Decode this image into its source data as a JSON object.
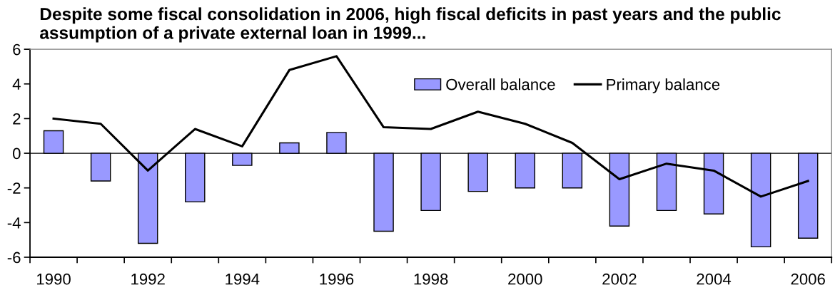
{
  "chart_data": {
    "type": "bar",
    "title": "Despite some fiscal consolidation in 2006, high fiscal deficits in past years and the public assumption of a private external loan in 1999...",
    "categories": [
      "1990",
      null,
      "1992",
      null,
      "1994",
      null,
      "1996",
      null,
      "1998",
      null,
      "2000",
      null,
      "2002",
      null,
      "2004",
      null,
      "2006"
    ],
    "series": [
      {
        "name": "Overall balance",
        "color": "#9999ff",
        "values": [
          1.3,
          -1.6,
          -5.2,
          -2.8,
          -0.7,
          0.6,
          1.2,
          -4.5,
          -3.3,
          -2.2,
          -2.0,
          -2.0,
          -4.2,
          -3.3,
          -3.5,
          -5.4,
          -4.9
        ]
      },
      {
        "name": "Primary balance",
        "type": "line",
        "color": "#000000",
        "values": [
          2.0,
          1.7,
          -1.0,
          1.4,
          0.4,
          4.8,
          5.6,
          1.5,
          1.4,
          2.4,
          1.7,
          0.6,
          -1.5,
          -0.6,
          -1.0,
          -2.5,
          -1.6
        ]
      }
    ],
    "ylim": [
      -6,
      6
    ],
    "yticks": [
      -6,
      -4,
      -2,
      0,
      2,
      4,
      6
    ],
    "ref_lines": [
      {
        "axis": "y",
        "value": 0,
        "color": "#000000"
      }
    ],
    "grid": false,
    "legend": "top right",
    "marker": "none",
    "line_style": "solid"
  }
}
